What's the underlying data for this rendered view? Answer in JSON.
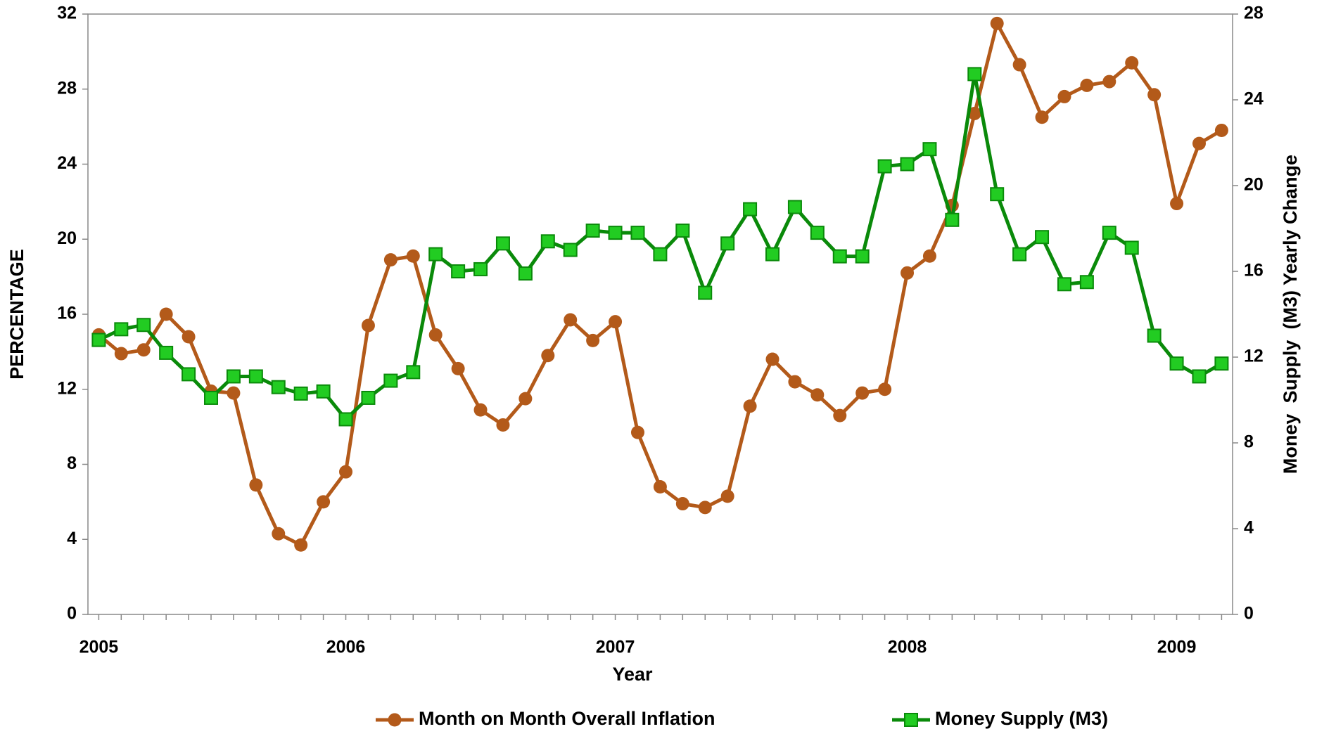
{
  "chart_data": {
    "type": "line",
    "x_label": "Year",
    "y_label": "PERCENTAGE",
    "y2_label": "Money  Supply  (M3) Yearly Change",
    "categories": [
      "2005",
      null,
      null,
      null,
      null,
      null,
      null,
      null,
      null,
      null,
      null,
      "2006",
      null,
      null,
      null,
      null,
      null,
      null,
      null,
      null,
      null,
      null,
      null,
      "2007",
      null,
      null,
      null,
      null,
      null,
      null,
      null,
      null,
      null,
      null,
      null,
      null,
      "2008",
      null,
      null,
      null,
      null,
      null,
      null,
      null,
      null,
      null,
      null,
      null,
      "2009",
      null,
      null
    ],
    "series": [
      {
        "name": "Month on Month Overall Inflation",
        "color": "#b35a1a",
        "marker": "circle",
        "values": [
          14.9,
          13.9,
          14.1,
          16.0,
          14.8,
          11.9,
          11.8,
          6.9,
          4.3,
          3.7,
          6.0,
          7.6,
          15.4,
          18.9,
          19.1,
          14.9,
          13.1,
          10.9,
          10.1,
          11.5,
          13.8,
          15.7,
          14.6,
          15.6,
          9.7,
          6.8,
          5.9,
          5.7,
          6.3,
          11.1,
          13.6,
          12.4,
          11.7,
          10.6,
          11.8,
          12.0,
          18.2,
          19.1,
          21.8,
          26.7,
          31.5,
          29.3,
          26.5,
          27.6,
          28.2,
          28.4,
          29.4,
          27.7,
          21.9,
          25.1,
          25.8
        ]
      },
      {
        "name": "Money Supply (M3)",
        "color": "#0a8a0a",
        "marker_fill": "#22cc22",
        "marker": "square",
        "axis": "y2",
        "values": [
          12.8,
          13.3,
          13.5,
          12.2,
          11.2,
          10.1,
          11.1,
          11.1,
          10.6,
          10.3,
          10.4,
          9.1,
          10.1,
          10.9,
          11.3,
          16.8,
          16.0,
          16.1,
          17.3,
          15.9,
          17.4,
          17.0,
          17.9,
          17.8,
          17.8,
          16.8,
          17.9,
          15.0,
          17.3,
          18.9,
          16.8,
          19.0,
          17.8,
          16.7,
          16.7,
          20.9,
          21.0,
          21.7,
          18.4,
          25.2,
          19.6,
          16.8,
          17.6,
          15.4,
          15.5,
          17.8,
          17.1,
          13.0,
          11.7,
          11.1,
          11.7
        ]
      }
    ],
    "ylim": [
      0,
      32
    ],
    "yticks": [
      0,
      4,
      8,
      12,
      16,
      20,
      24,
      28,
      32
    ],
    "y2lim": [
      0,
      28
    ],
    "y2ticks": [
      0,
      4,
      8,
      12,
      16,
      20,
      24,
      28
    ],
    "legend": "bottom"
  }
}
